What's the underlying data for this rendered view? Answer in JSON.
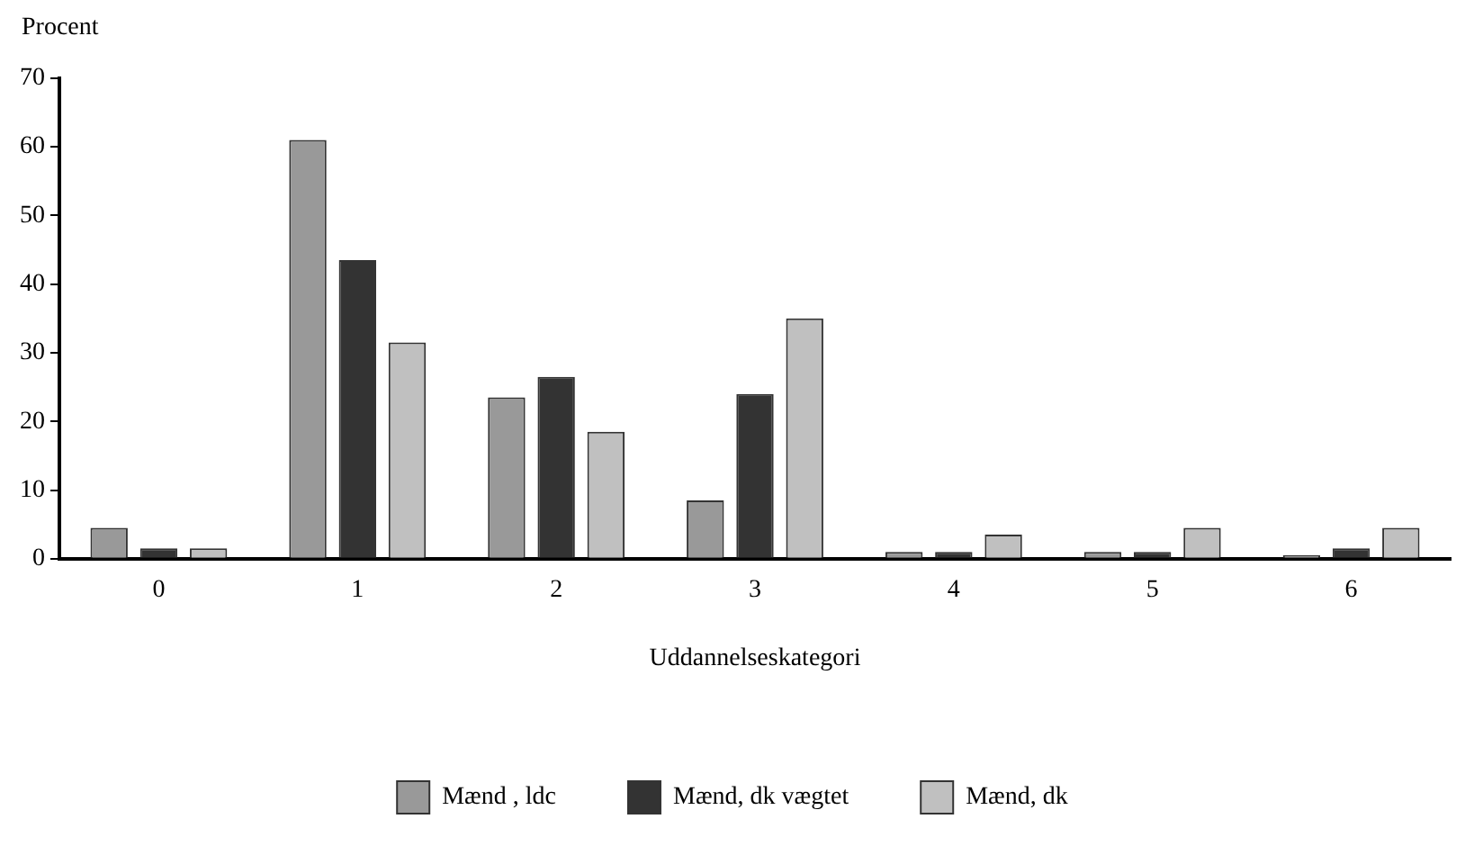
{
  "chart_data": {
    "type": "bar",
    "ylabel": "Procent",
    "xlabel": "Uddannelseskategori",
    "categories": [
      "0",
      "1",
      "2",
      "3",
      "4",
      "5",
      "6"
    ],
    "series": [
      {
        "name": "Mænd , ldc",
        "color": "#999999",
        "values": [
          4.5,
          61,
          23.5,
          8.5,
          1,
          1,
          0.5
        ]
      },
      {
        "name": "Mænd, dk vægtet",
        "color": "#333333",
        "values": [
          1.5,
          43.5,
          26.5,
          24,
          1,
          1,
          1.5
        ]
      },
      {
        "name": "Mænd, dk",
        "color": "#c0c0c0",
        "values": [
          1.5,
          31.5,
          18.5,
          35,
          3.5,
          4.5,
          4.5
        ]
      }
    ],
    "ylim": [
      0,
      70
    ],
    "yticks": [
      0,
      10,
      20,
      30,
      40,
      50,
      60,
      70
    ],
    "grid": false,
    "legend": "bottom"
  }
}
